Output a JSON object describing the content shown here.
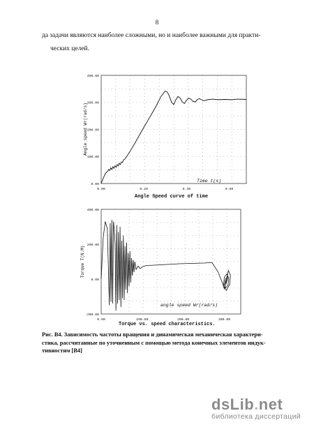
{
  "page_number": "8",
  "body_text": [
    "да задачи являются наиболее сложными, но и наиболее важными для практи-",
    "ческих целей."
  ],
  "chart_data": [
    {
      "type": "line",
      "title": "Angle Speed curve of time",
      "xlabel": "Time t(s)",
      "ylabel": "Angle speed Wr(rad/s)",
      "xlim": [
        0,
        0.68
      ],
      "ylim": [
        0,
        400
      ],
      "x_ticks": [
        "0.00",
        "0.20",
        "0.40",
        "0.60"
      ],
      "y_ticks": [
        "0.00",
        "100.00",
        "200.00",
        "300.00",
        "400.00"
      ],
      "grid": "dotted",
      "series": [
        {
          "x": [
            0,
            0.01,
            0.02,
            0.03,
            0.035,
            0.04,
            0.045,
            0.05,
            0.055,
            0.06,
            0.065,
            0.07,
            0.075,
            0.08,
            0.085,
            0.09,
            0.095,
            0.1,
            0.105,
            0.11,
            0.12,
            0.14,
            0.16,
            0.18,
            0.2,
            0.22,
            0.24,
            0.26,
            0.28,
            0.3,
            0.31,
            0.32,
            0.33,
            0.34,
            0.35,
            0.36,
            0.37,
            0.38,
            0.39,
            0.4,
            0.41,
            0.42,
            0.43,
            0.44,
            0.45,
            0.46,
            0.47,
            0.48,
            0.5,
            0.52,
            0.55,
            0.58,
            0.61,
            0.64,
            0.68
          ],
          "y": [
            0,
            20,
            38,
            45,
            52,
            48,
            58,
            52,
            62,
            56,
            66,
            60,
            70,
            65,
            75,
            70,
            80,
            78,
            88,
            90,
            100,
            125,
            152,
            180,
            208,
            235,
            262,
            290,
            322,
            342,
            338,
            322,
            300,
            292,
            310,
            322,
            316,
            302,
            296,
            308,
            316,
            312,
            304,
            302,
            310,
            314,
            310,
            306,
            310,
            312,
            310,
            311,
            310,
            312,
            311
          ]
        }
      ]
    },
    {
      "type": "line",
      "title": "Torque vs. speed characteristics.",
      "xlabel": "angle speed Wr(rad/s)",
      "ylabel": "Torque T(N.M)",
      "xlim": [
        0,
        340
      ],
      "ylim": [
        -200,
        400
      ],
      "x_ticks": [
        "0.00",
        "100.00",
        "200.00",
        "300.00"
      ],
      "y_ticks": [
        "-200.00",
        "0.00",
        "200.00",
        "400.00"
      ],
      "grid": "dotted",
      "series": [
        {
          "x": [
            0,
            5,
            10,
            15,
            20,
            22,
            24,
            26,
            28,
            30,
            32,
            34,
            36,
            38,
            40,
            42,
            44,
            46,
            48,
            50,
            52,
            54,
            56,
            58,
            60,
            62,
            64,
            66,
            68,
            70,
            72,
            74,
            76,
            78,
            80,
            82,
            85,
            90,
            95,
            100,
            110,
            130,
            160,
            190,
            220,
            250,
            270,
            285,
            295,
            300,
            305,
            310,
            315,
            313,
            305,
            298,
            300,
            306,
            311,
            309,
            303,
            300,
            303,
            308,
            307,
            303,
            302,
            305,
            306,
            304,
            303,
            304,
            305,
            304
          ],
          "y": [
            0,
            240,
            330,
            290,
            -150,
            320,
            -130,
            340,
            -140,
            330,
            280,
            200,
            -180,
            310,
            -140,
            270,
            -120,
            300,
            -160,
            220,
            -110,
            250,
            -120,
            190,
            -60,
            210,
            -80,
            150,
            -40,
            160,
            -20,
            120,
            20,
            110,
            40,
            100,
            55,
            75,
            60,
            70,
            78,
            80,
            84,
            88,
            90,
            92,
            95,
            40,
            -20,
            -55,
            -10,
            50,
            20,
            -30,
            -65,
            -40,
            10,
            30,
            5,
            -35,
            -50,
            -30,
            0,
            15,
            -5,
            -30,
            -35,
            -20,
            -5,
            -10,
            -25,
            -28,
            -20,
            -22
          ]
        }
      ]
    }
  ],
  "caption": [
    "Рис. В4. Зависимость частоты вращения и динамическая механическая характери-",
    "стика, рассчитанные по уточненным с помощью метода конечных элементов индук-",
    "тивностям [В4]"
  ],
  "watermark": {
    "logo_main": "dsLib",
    "logo_dot": ".",
    "logo_tld": "net",
    "subtitle": "библиотека диссертаций"
  }
}
